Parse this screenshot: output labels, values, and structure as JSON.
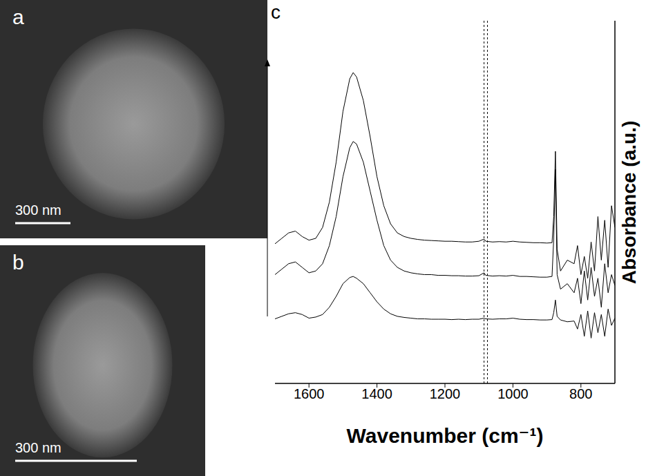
{
  "images": [
    {
      "label": "a",
      "scale_bar": "300 nm"
    },
    {
      "label": "b",
      "scale_bar": "300 nm"
    }
  ],
  "chart_label": "c",
  "chart_data": {
    "type": "line",
    "x_label": "Wavenumber (cm⁻¹)",
    "y_label": "Absorbance (a.u.)",
    "x": [
      1700,
      1680,
      1660,
      1640,
      1620,
      1600,
      1580,
      1560,
      1540,
      1520,
      1500,
      1480,
      1470,
      1460,
      1440,
      1420,
      1400,
      1380,
      1360,
      1340,
      1320,
      1300,
      1280,
      1260,
      1240,
      1220,
      1200,
      1180,
      1160,
      1140,
      1120,
      1100,
      1085,
      1080,
      1060,
      1040,
      1020,
      1000,
      980,
      960,
      940,
      920,
      900,
      885,
      880,
      875,
      870,
      860,
      840,
      820,
      810,
      800,
      790,
      780,
      770,
      760,
      750,
      740,
      730,
      720,
      710,
      700
    ],
    "series": [
      {
        "color": "#000000",
        "values": [
          1.78,
          1.85,
          1.92,
          1.95,
          1.9,
          1.8,
          1.83,
          1.9,
          2.1,
          2.4,
          2.75,
          2.92,
          2.95,
          2.9,
          2.75,
          2.5,
          2.25,
          2.05,
          1.92,
          1.85,
          1.82,
          1.8,
          1.78,
          1.78,
          1.77,
          1.77,
          1.77,
          1.76,
          1.77,
          1.76,
          1.77,
          1.77,
          1.8,
          1.78,
          1.77,
          1.78,
          1.78,
          1.8,
          1.77,
          1.76,
          1.76,
          1.75,
          1.75,
          1.76,
          1.95,
          2.3,
          1.85,
          1.75,
          1.7,
          1.72,
          1.5,
          1.9,
          1.3,
          2.0,
          1.25,
          1.95,
          1.4,
          1.9,
          1.3,
          2.05,
          1.6,
          1.8
        ]
      },
      {
        "color": "#000000",
        "values": [
          3.0,
          3.15,
          3.3,
          3.35,
          3.2,
          3.05,
          3.1,
          3.3,
          3.8,
          4.6,
          5.7,
          6.5,
          6.67,
          6.6,
          6.1,
          5.3,
          4.5,
          3.8,
          3.4,
          3.2,
          3.1,
          3.05,
          3.02,
          3.0,
          3.0,
          2.98,
          2.98,
          2.97,
          2.97,
          2.96,
          2.96,
          2.97,
          3.05,
          2.98,
          2.96,
          2.97,
          2.96,
          2.98,
          2.95,
          2.95,
          2.94,
          2.93,
          2.93,
          2.95,
          4.0,
          5.9,
          3.0,
          2.6,
          2.75,
          2.5,
          2.9,
          2.2,
          3.1,
          2.3,
          3.2,
          2.4,
          2.9,
          2.1,
          3.3,
          2.5,
          3.0,
          2.7
        ]
      },
      {
        "color": "#000000",
        "values": [
          3.85,
          4.0,
          4.15,
          4.2,
          4.05,
          3.95,
          4.0,
          4.3,
          5.0,
          6.1,
          7.5,
          8.4,
          8.57,
          8.45,
          7.8,
          6.8,
          5.7,
          4.9,
          4.4,
          4.15,
          4.05,
          4.0,
          3.97,
          3.95,
          3.94,
          3.93,
          3.92,
          3.92,
          3.91,
          3.9,
          3.9,
          3.92,
          3.98,
          3.92,
          3.9,
          3.91,
          3.9,
          3.92,
          3.9,
          3.89,
          3.88,
          3.88,
          3.87,
          3.88,
          4.6,
          6.4,
          3.7,
          3.1,
          3.4,
          3.3,
          3.8,
          3.0,
          3.5,
          2.9,
          3.9,
          3.1,
          4.6,
          3.4,
          4.5,
          3.2,
          4.9,
          4.3
        ]
      }
    ],
    "xlim": [
      1700,
      700
    ],
    "xticks": [
      1600,
      1400,
      1200,
      1000,
      800
    ],
    "ylim": [
      0,
      10
    ],
    "tick_labels": "x",
    "grid": false,
    "vlines": [
      1085,
      1075
    ]
  }
}
